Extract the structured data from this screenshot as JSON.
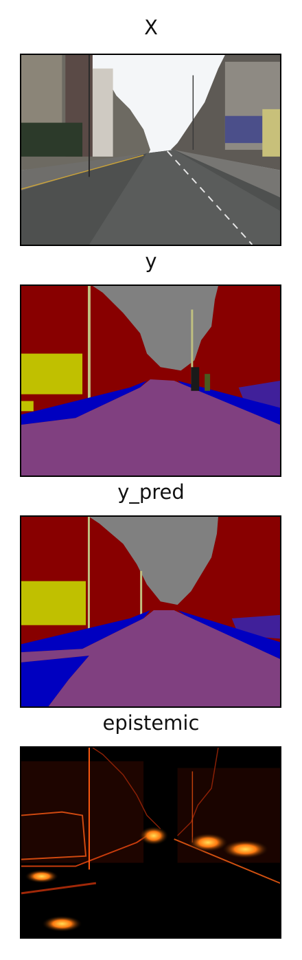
{
  "panels": [
    {
      "title": "X",
      "kind": "photo"
    },
    {
      "title": "y",
      "kind": "segmentation"
    },
    {
      "title": "y_pred",
      "kind": "segmentation-prediction"
    },
    {
      "title": "epistemic",
      "kind": "uncertainty-heatmap"
    }
  ],
  "colors": {
    "building": "#880000",
    "sky": "#808080",
    "road": "#804080",
    "sidewalk": "#0000c0",
    "vegetation": "#c0c000",
    "pole": "#c0c080",
    "heat_low": "#000000",
    "heat_high": "#ffcc33"
  }
}
